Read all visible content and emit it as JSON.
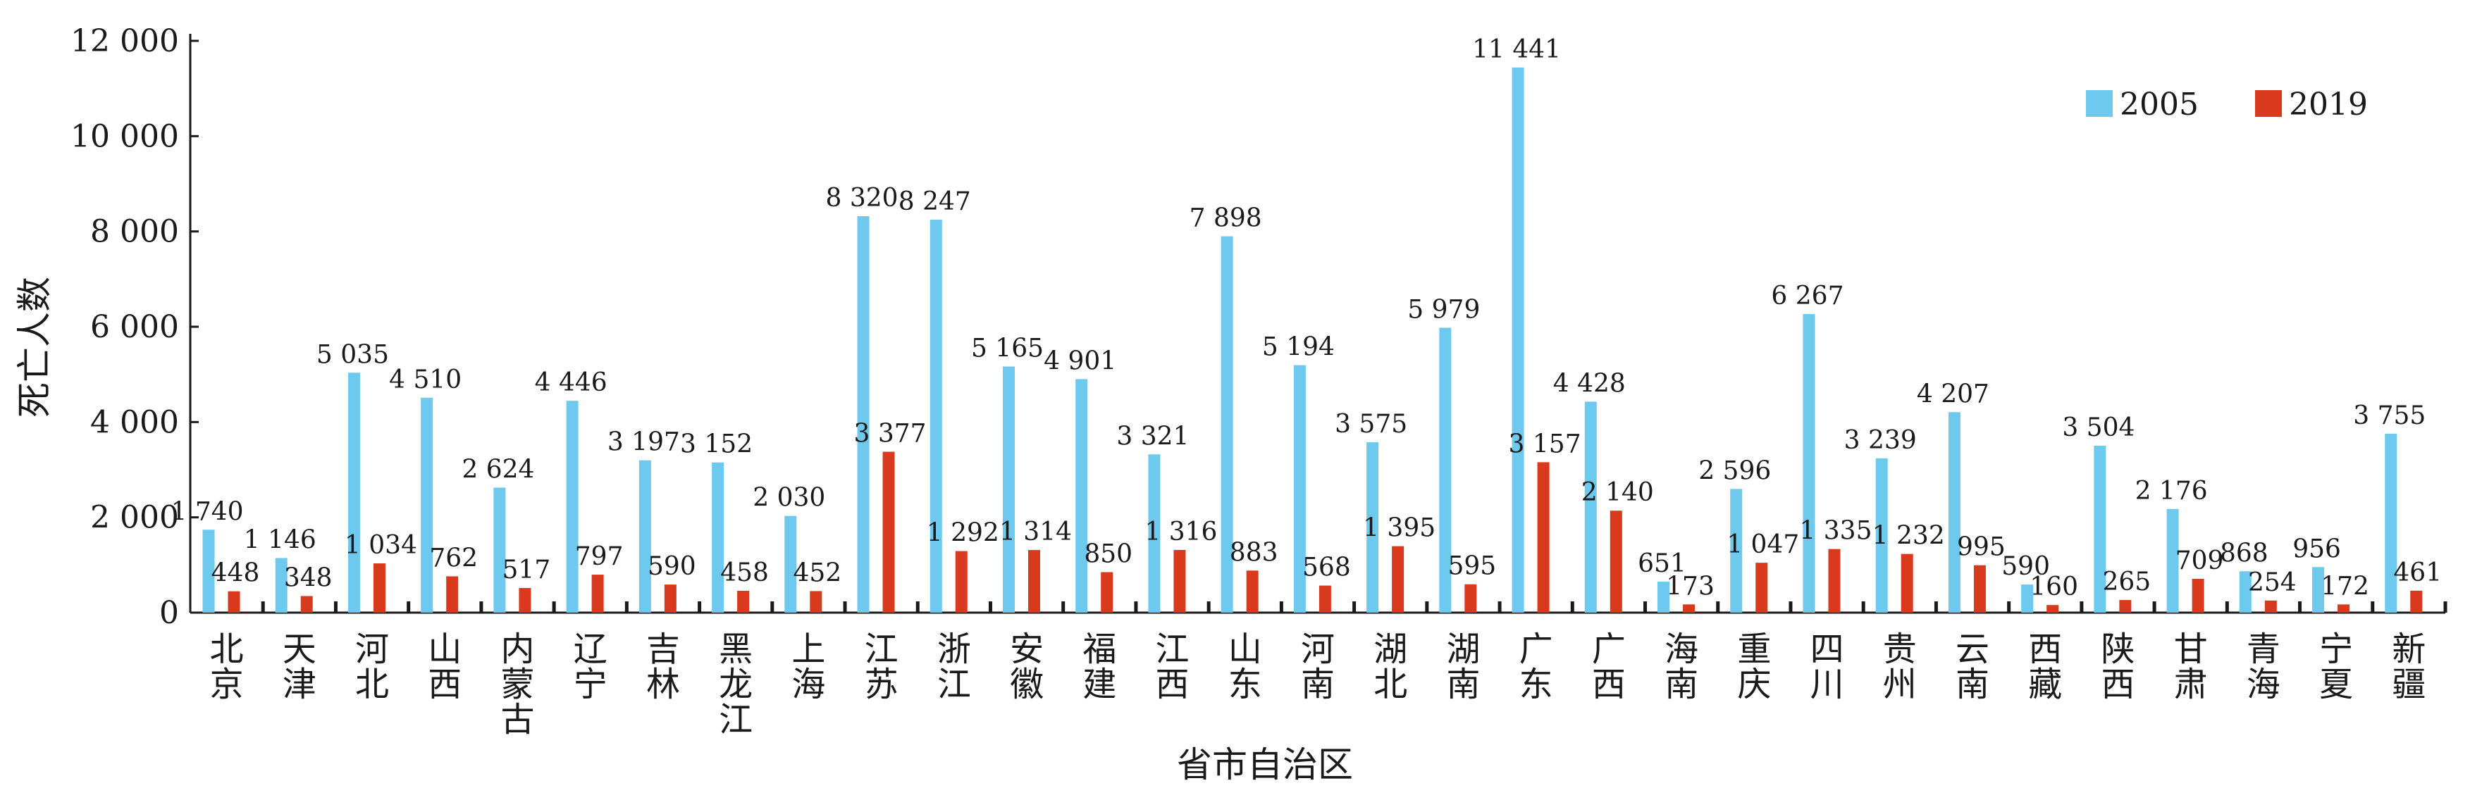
{
  "chart_data": {
    "type": "bar",
    "xlabel": "省市自治区",
    "ylabel": "死亡人数",
    "ylim": [
      0,
      12000
    ],
    "yticks": [
      "0",
      "2 000",
      "4 000",
      "6 000",
      "8 000",
      "10 000",
      "12 000"
    ],
    "ytick_values": [
      0,
      2000,
      4000,
      6000,
      8000,
      10000,
      12000
    ],
    "legend_position": "top-right",
    "categories": [
      "北京",
      "天津",
      "河北",
      "山西",
      "内蒙古",
      "辽宁",
      "吉林",
      "黑龙江",
      "上海",
      "江苏",
      "浙江",
      "安徽",
      "福建",
      "江西",
      "山东",
      "河南",
      "湖北",
      "湖南",
      "广东",
      "广西",
      "海南",
      "重庆",
      "四川",
      "贵州",
      "云南",
      "西藏",
      "陕西",
      "甘肃",
      "青海",
      "宁夏",
      "新疆"
    ],
    "series": [
      {
        "name": "2005",
        "color": "#6EC9EE",
        "values": [
          1740,
          1146,
          5035,
          4510,
          2624,
          4446,
          3197,
          3152,
          2030,
          8320,
          8247,
          5165,
          4901,
          3321,
          7898,
          5194,
          3575,
          5979,
          11441,
          4428,
          651,
          2596,
          6267,
          3239,
          4207,
          590,
          3504,
          2176,
          868,
          956,
          3755
        ],
        "labels": [
          "1 740",
          "1 146",
          "5 035",
          "4 510",
          "2 624",
          "4 446",
          "3 197",
          "3 152",
          "2 030",
          "8 320",
          "8 247",
          "5 165",
          "4 901",
          "3 321",
          "7 898",
          "5 194",
          "3 575",
          "5 979",
          "11 441",
          "4 428",
          "651",
          "2 596",
          "6 267",
          "3 239",
          "4 207",
          "590",
          "3 504",
          "2 176",
          "868",
          "956",
          "3 755"
        ]
      },
      {
        "name": "2019",
        "color": "#D93A1E",
        "values": [
          448,
          348,
          1034,
          762,
          517,
          797,
          590,
          458,
          452,
          3377,
          1292,
          1314,
          850,
          1316,
          883,
          568,
          1395,
          595,
          3157,
          2140,
          173,
          1047,
          1335,
          1232,
          995,
          160,
          265,
          709,
          254,
          172,
          461
        ],
        "labels": [
          "448",
          "348",
          "1 034",
          "762",
          "517",
          "797",
          "590",
          "458",
          "452",
          "3 377",
          "1 292",
          "1 314",
          "850",
          "1 316",
          "883",
          "568",
          "1 395",
          "595",
          "3 157",
          "2 140",
          "173",
          "1 047",
          "1 335",
          "1 232",
          "995",
          "160",
          "265",
          "709",
          "254",
          "172",
          "461"
        ]
      }
    ]
  }
}
